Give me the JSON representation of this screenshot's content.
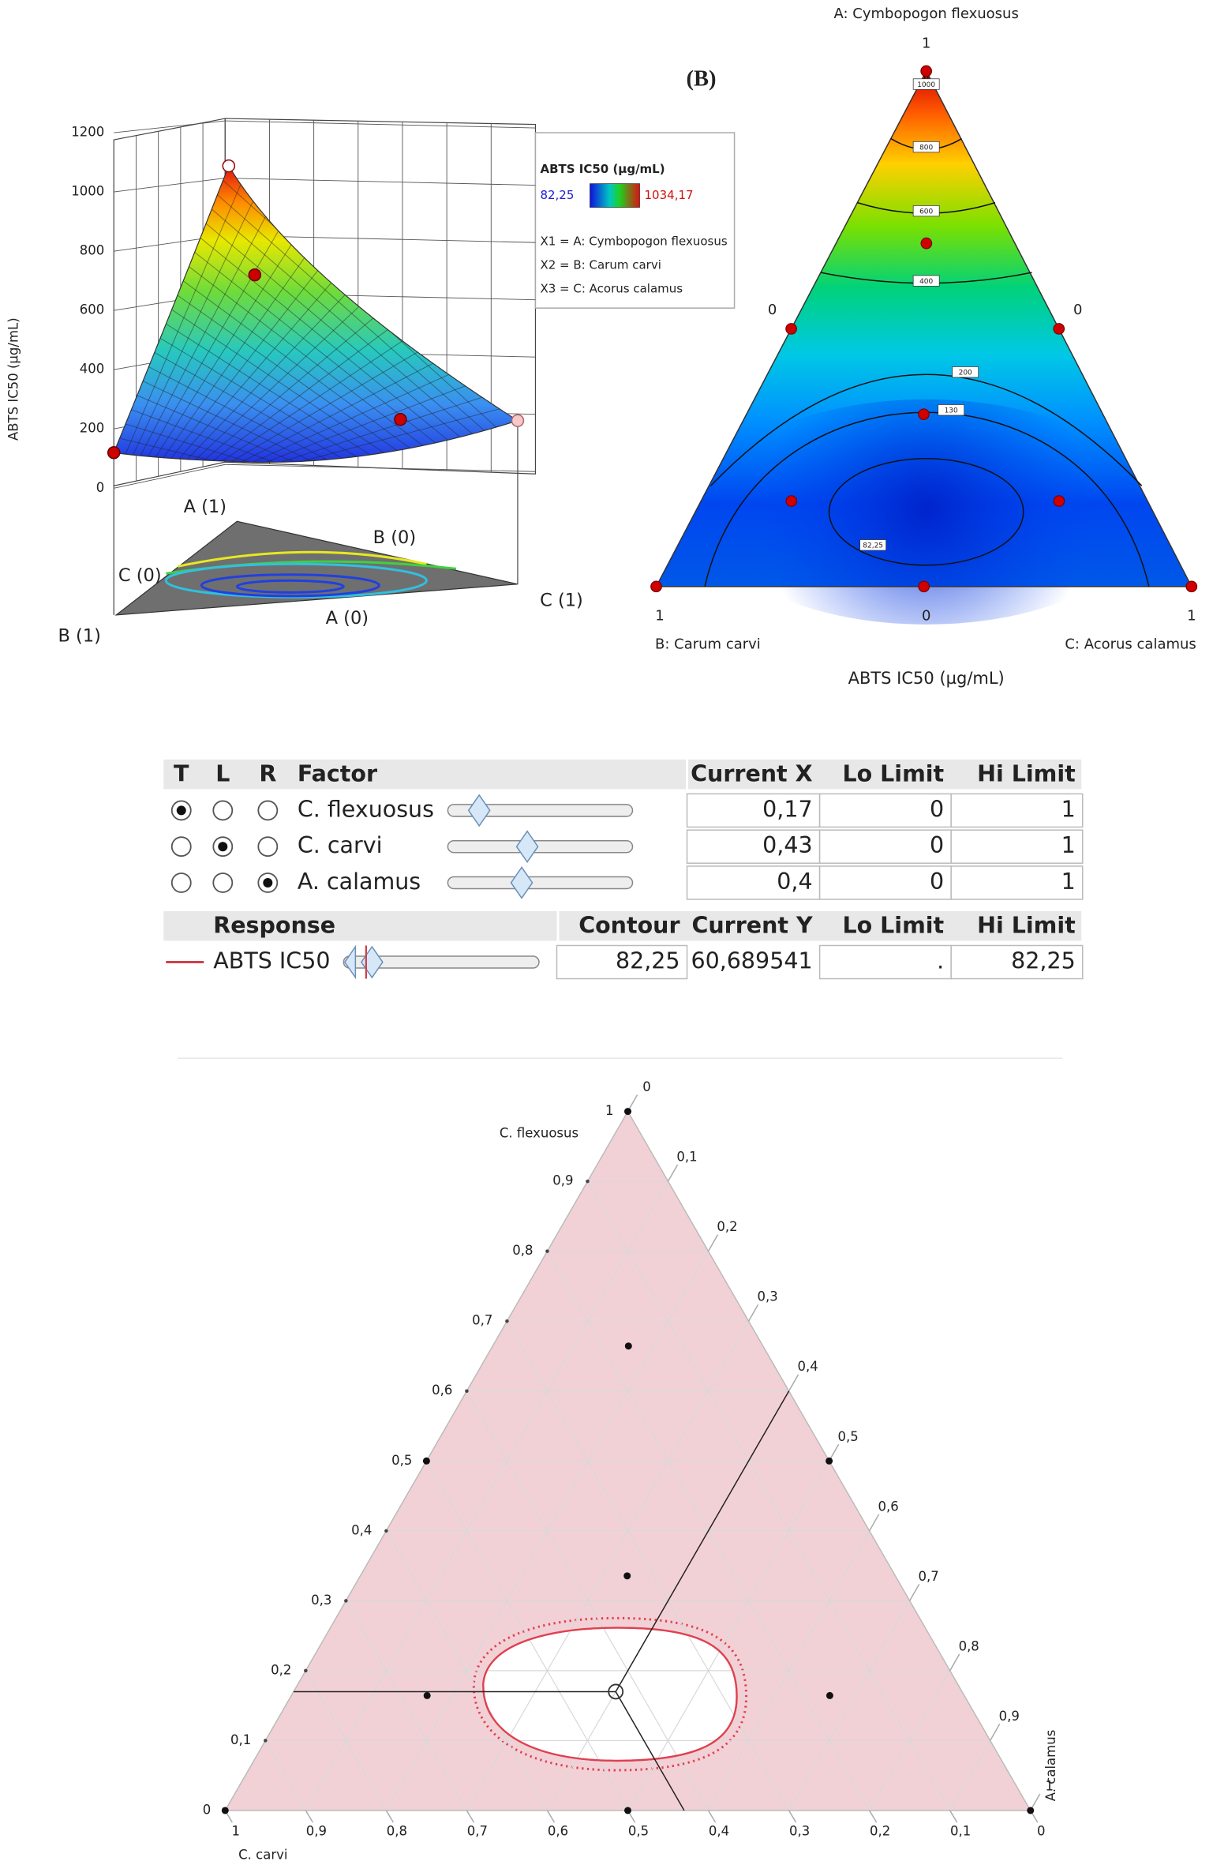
{
  "surface_plot": {
    "y_label": "ABTS IC50 (µg/mL)",
    "zticks": [
      0,
      200,
      400,
      600,
      800,
      1000,
      1200
    ],
    "corner_labels": [
      "A (1)",
      "B (0)",
      "C (0)",
      "A (0)",
      "B (1)",
      "C (1)"
    ],
    "legend": {
      "title": "ABTS IC50 (µg/mL)",
      "min_label": "82,25",
      "max_label": "1034,17",
      "factors": [
        "X1 = A: Cymbopogon flexuosus",
        "X2 = B: Carum carvi",
        "X3 = C: Acorus calamus"
      ]
    }
  },
  "contour_plot": {
    "panel_label": "(B)",
    "x_title": "ABTS IC50 (µg/mL)",
    "vertex_labels": [
      "A: Cymbopogon flexuosus",
      "B: Carum carvi",
      "C: Acorus calamus"
    ],
    "axis_ticks": [
      [
        1,
        0
      ],
      [
        1,
        0
      ],
      [
        1,
        0
      ]
    ],
    "contours": [
      1000,
      800,
      600,
      400,
      200,
      130,
      {
        "value": 82.25,
        "label": "82,25"
      }
    ],
    "design_points": [
      [
        1,
        0,
        0
      ],
      [
        0,
        1,
        0
      ],
      [
        0,
        0,
        1
      ],
      [
        0.5,
        0.5,
        0
      ],
      [
        0.5,
        0,
        0.5
      ],
      [
        0,
        0.5,
        0.5
      ],
      [
        0.333,
        0.333,
        0.333
      ],
      [
        0.667,
        0.167,
        0.167
      ],
      [
        0.167,
        0.667,
        0.167
      ],
      [
        0.167,
        0.167,
        0.667
      ]
    ]
  },
  "profiler": {
    "factor_header": [
      "T",
      "L",
      "R",
      "Factor",
      "Current X",
      "Lo Limit",
      "Hi Limit"
    ],
    "factors": [
      {
        "name": "C. flexuosus",
        "current_x": "0,17",
        "lo": "0",
        "hi": "1"
      },
      {
        "name": "C. carvi",
        "current_x": "0,43",
        "lo": "0",
        "hi": "1"
      },
      {
        "name": "A. calamus",
        "current_x": "0,4",
        "lo": "0",
        "hi": "1"
      }
    ],
    "response_header": [
      "Response",
      "Contour",
      "Current Y",
      "Lo Limit",
      "Hi Limit"
    ],
    "response": {
      "name": "ABTS IC50",
      "contour": "82,25",
      "current_y": "60,689541",
      "lo": ".",
      "hi": "82,25"
    }
  },
  "ternary_overlay": {
    "axis_titles": [
      "C. flexuosus",
      "A. calamus",
      "C. carvi"
    ],
    "left_ticks": [
      0,
      {
        "value": 0.1,
        "label": "0,1"
      },
      {
        "value": 0.2,
        "label": "0,2"
      },
      {
        "value": 0.3,
        "label": "0,3"
      },
      {
        "value": 0.4,
        "label": "0,4"
      },
      {
        "value": 0.5,
        "label": "0,5"
      },
      {
        "value": 0.6,
        "label": "0,6"
      },
      {
        "value": 0.7,
        "label": "0,7"
      },
      {
        "value": 0.8,
        "label": "0,8"
      },
      {
        "value": 0.9,
        "label": "0,9"
      },
      1
    ],
    "right_ticks": [
      0,
      {
        "value": 0.1,
        "label": "0,1"
      },
      {
        "value": 0.2,
        "label": "0,2"
      },
      {
        "value": 0.3,
        "label": "0,3"
      },
      {
        "value": 0.4,
        "label": "0,4"
      },
      {
        "value": 0.5,
        "label": "0,5"
      },
      {
        "value": 0.6,
        "label": "0,6"
      },
      {
        "value": 0.7,
        "label": "0,7"
      },
      {
        "value": 0.8,
        "label": "0,8"
      },
      {
        "value": 0.9,
        "label": "0,9"
      },
      1
    ],
    "bottom_ticks": [
      1,
      {
        "value": 0.9,
        "label": "0,9"
      },
      {
        "value": 0.8,
        "label": "0,8"
      },
      {
        "value": 0.7,
        "label": "0,7"
      },
      {
        "value": 0.6,
        "label": "0,6"
      },
      {
        "value": 0.5,
        "label": "0,5"
      },
      {
        "value": 0.4,
        "label": "0,4"
      },
      {
        "value": 0.3,
        "label": "0,3"
      },
      {
        "value": 0.2,
        "label": "0,2"
      },
      {
        "value": 0.1,
        "label": "0,1"
      },
      0
    ],
    "design_points": [
      [
        1,
        0,
        0
      ],
      [
        0,
        1,
        0
      ],
      [
        0,
        0,
        1
      ],
      [
        0.5,
        0.5,
        0
      ],
      [
        0.5,
        0,
        0.5
      ],
      [
        0,
        0.5,
        0.5
      ],
      [
        0.333,
        0.333,
        0.333
      ],
      [
        0.667,
        0.167,
        0.167
      ],
      [
        0.167,
        0.667,
        0.167
      ],
      [
        0.167,
        0.167,
        0.667
      ]
    ]
  }
}
